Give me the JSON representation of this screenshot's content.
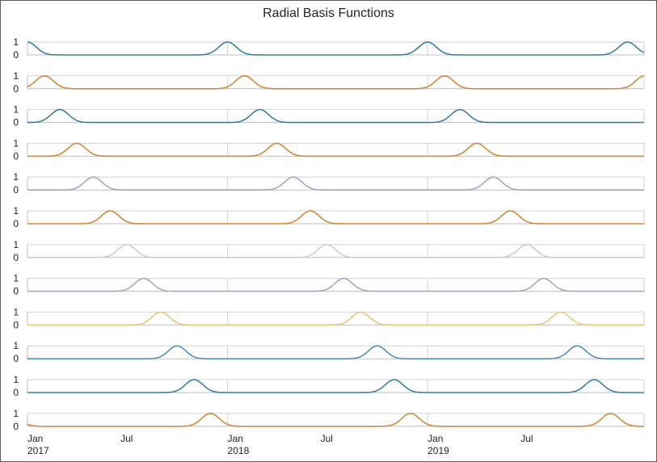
{
  "chart_data": {
    "type": "line",
    "title": "Radial Basis Functions",
    "x_range": [
      "2017-01-01",
      "2020-01-31"
    ],
    "x_ticks": [
      {
        "date": "2017-01-01",
        "line1": "Jan",
        "line2": "2017"
      },
      {
        "date": "2017-07-01",
        "line1": "Jul",
        "line2": ""
      },
      {
        "date": "2018-01-01",
        "line1": "Jan",
        "line2": "2018"
      },
      {
        "date": "2018-07-01",
        "line1": "Jul",
        "line2": ""
      },
      {
        "date": "2019-01-01",
        "line1": "Jan",
        "line2": "2019"
      },
      {
        "date": "2019-07-01",
        "line1": "Jul",
        "line2": ""
      }
    ],
    "y_ticks": [
      "1",
      "0"
    ],
    "ylim": [
      0,
      1
    ],
    "grid": true,
    "legend": "none",
    "period_months": 12,
    "series": [
      {
        "color": "#3b7f9e",
        "peaks": [
          "2017-01-01",
          "2018-01-01",
          "2019-01-01",
          "2020-01-01"
        ]
      },
      {
        "color": "#d08a3a",
        "peaks": [
          "2017-02-01",
          "2018-02-01",
          "2019-02-01",
          "2020-02-01"
        ]
      },
      {
        "color": "#3b7f9e",
        "peaks": [
          "2017-03-01",
          "2018-03-01",
          "2019-03-01"
        ]
      },
      {
        "color": "#d08a3a",
        "peaks": [
          "2017-04-01",
          "2018-04-01",
          "2019-04-01"
        ]
      },
      {
        "color": "#a9a4c2",
        "peaks": [
          "2017-05-01",
          "2018-05-01",
          "2019-05-01"
        ]
      },
      {
        "color": "#d08a3a",
        "peaks": [
          "2017-06-01",
          "2018-06-01",
          "2019-06-01"
        ]
      },
      {
        "color": "#cccccc",
        "peaks": [
          "2017-07-01",
          "2018-07-01",
          "2019-07-01"
        ]
      },
      {
        "color": "#a9a4c2",
        "peaks": [
          "2017-08-01",
          "2018-08-01",
          "2019-08-01"
        ]
      },
      {
        "color": "#e3c97a",
        "peaks": [
          "2017-09-01",
          "2018-09-01",
          "2019-09-01"
        ]
      },
      {
        "color": "#5b8fb0",
        "peaks": [
          "2017-10-01",
          "2018-10-01",
          "2019-10-01"
        ]
      },
      {
        "color": "#3b7f9e",
        "peaks": [
          "2017-11-01",
          "2018-11-01",
          "2019-11-01"
        ]
      },
      {
        "color": "#d08a3a",
        "peaks": [
          "2016-12-01",
          "2017-12-01",
          "2018-12-01",
          "2019-12-01"
        ]
      }
    ]
  }
}
